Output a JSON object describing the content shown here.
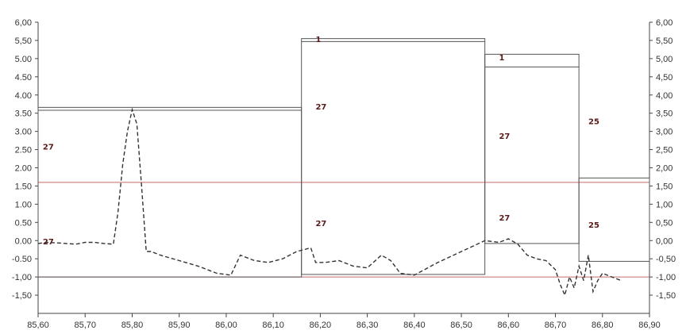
{
  "chart_data": {
    "type": "line",
    "x_range": [
      85.6,
      86.9
    ],
    "y_range": [
      -2.0,
      6.0
    ],
    "x_ticks": [
      "85,60",
      "85,70",
      "85,80",
      "85,90",
      "86,00",
      "86,10",
      "86,20",
      "86,30",
      "86,40",
      "86,50",
      "86,60",
      "86,70",
      "86,80",
      "86,90"
    ],
    "y_ticks_left": [
      "6,00",
      "5,50",
      "5.00",
      "4.50",
      "4.00",
      "3.50",
      "3.00",
      "2.50",
      "2.00",
      "1.50",
      "1.00",
      "0.50",
      "0.00",
      "-0.50",
      "-1,00",
      "-1,50"
    ],
    "y_ticks_right": [
      "6,00",
      "5,50",
      "5,00",
      "4,50",
      "4,00",
      "3,50",
      "3,00",
      "2,50",
      "2,00",
      "1,50",
      "1,00",
      "0,50",
      "0,00",
      "-0,50",
      "-1,00",
      "-1,50"
    ],
    "left_tick_values": [
      6.0,
      5.5,
      5.0,
      4.5,
      4.0,
      3.5,
      3.0,
      2.5,
      2.0,
      1.5,
      1.0,
      0.5,
      0.0,
      -0.5,
      -1.0,
      -1.5
    ],
    "reference_lines": [
      {
        "y": 1.6,
        "color": "#c46a6a"
      },
      {
        "y": -1.0,
        "color": "#c46a6a"
      }
    ],
    "boxes": [
      {
        "label": "27",
        "x0": 85.6,
        "x1": 86.16,
        "top": 3.66,
        "bottom": -1.0,
        "inner_top": 3.58
      },
      {
        "label": "27",
        "x0": 86.16,
        "x1": 86.55,
        "top": 5.55,
        "bottom": -0.93,
        "inner_top": 5.47
      },
      {
        "label": "27",
        "x0": 86.55,
        "x1": 86.75,
        "top": 5.12,
        "bottom": -0.08,
        "inner_top": 4.77
      },
      {
        "label": "25",
        "x0": 86.75,
        "x1": 86.9,
        "top": 1.72,
        "bottom": -0.57,
        "inner_top": 1.72
      }
    ],
    "box_labels": [
      {
        "text": "27",
        "x": 85.61,
        "y": 2.5
      },
      {
        "text": "27",
        "x": 85.61,
        "y": -0.1
      },
      {
        "text": "27",
        "x": 86.19,
        "y": 3.6
      },
      {
        "text": "27",
        "x": 86.19,
        "y": 0.4
      },
      {
        "text": "27",
        "x": 86.58,
        "y": 2.8
      },
      {
        "text": "27",
        "x": 86.58,
        "y": 0.55
      },
      {
        "text": "25",
        "x": 86.77,
        "y": 3.2
      },
      {
        "text": "25",
        "x": 86.77,
        "y": 0.35
      },
      {
        "text": "1",
        "x": 86.19,
        "y": 5.45
      },
      {
        "text": "1",
        "x": 86.58,
        "y": 4.95
      }
    ],
    "series": [
      {
        "style": "dashed",
        "color": "#333333",
        "x": [
          85.6,
          85.62,
          85.65,
          85.68,
          85.7,
          85.72,
          85.74,
          85.76,
          85.77,
          85.78,
          85.79,
          85.8,
          85.81,
          85.82,
          85.83,
          85.84,
          85.86,
          85.9,
          85.94,
          85.98,
          86.01,
          86.03,
          86.06,
          86.09,
          86.12,
          86.15,
          86.18,
          86.19,
          86.21,
          86.24,
          86.27,
          86.3,
          86.33,
          86.35,
          86.37,
          86.4,
          86.45,
          86.5,
          86.55,
          86.58,
          86.6,
          86.62,
          86.64,
          86.66,
          86.68,
          86.7,
          86.71,
          86.72,
          86.73,
          86.74,
          86.75,
          86.76,
          86.77,
          86.78,
          86.79,
          86.8,
          86.82,
          86.84
        ],
        "y": [
          -0.08,
          -0.05,
          -0.07,
          -0.1,
          -0.05,
          -0.05,
          -0.08,
          -0.1,
          0.8,
          2.1,
          3.0,
          3.6,
          3.2,
          1.5,
          -0.3,
          -0.3,
          -0.4,
          -0.55,
          -0.7,
          -0.9,
          -0.95,
          -0.4,
          -0.55,
          -0.6,
          -0.5,
          -0.3,
          -0.2,
          -0.6,
          -0.6,
          -0.55,
          -0.7,
          -0.75,
          -0.4,
          -0.55,
          -0.9,
          -0.95,
          -0.6,
          -0.3,
          0.0,
          -0.05,
          0.05,
          -0.1,
          -0.4,
          -0.5,
          -0.55,
          -0.8,
          -1.2,
          -1.5,
          -1.0,
          -1.3,
          -0.7,
          -1.1,
          -0.4,
          -1.4,
          -1.1,
          -0.9,
          -1.0,
          -1.1
        ]
      }
    ],
    "grid": false,
    "title": "",
    "xlabel": "",
    "ylabel": ""
  }
}
